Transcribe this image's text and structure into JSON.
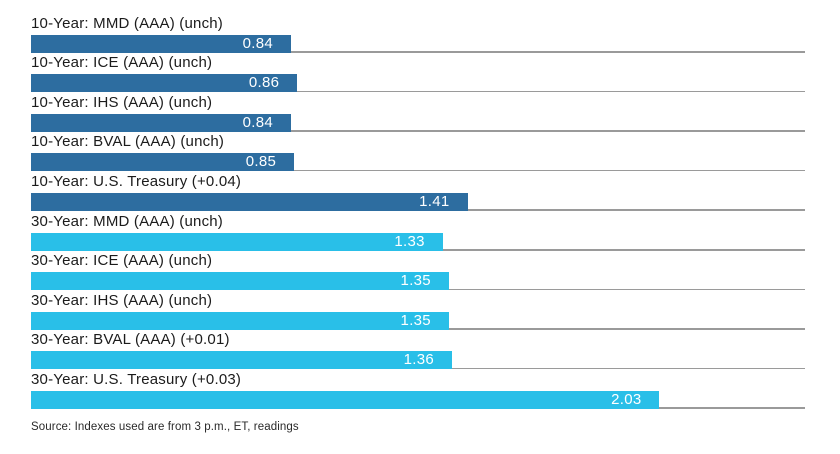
{
  "chart_data": {
    "type": "bar",
    "orientation": "horizontal",
    "title": "",
    "xlabel": "",
    "ylabel": "",
    "xlim": [
      0,
      2.5
    ],
    "grid": "row-baseline-only",
    "legend": "none",
    "colors": {
      "ten_year": "#2d6da0",
      "thirty_year": "#29bfe8",
      "baseline": "#9a9a9a",
      "value_text": "#ffffff",
      "label_text": "#1b1b1b"
    },
    "bars": [
      {
        "label": "10-Year: MMD (AAA) (unch)",
        "value": 0.84,
        "value_label": "0.84",
        "series": "10-year"
      },
      {
        "label": "10-Year: ICE (AAA) (unch)",
        "value": 0.86,
        "value_label": "0.86",
        "series": "10-year"
      },
      {
        "label": "10-Year: IHS (AAA) (unch)",
        "value": 0.84,
        "value_label": "0.84",
        "series": "10-year"
      },
      {
        "label": "10-Year: BVAL (AAA) (unch)",
        "value": 0.85,
        "value_label": "0.85",
        "series": "10-year"
      },
      {
        "label": "10-Year: U.S. Treasury (+0.04)",
        "value": 1.41,
        "value_label": "1.41",
        "series": "10-year"
      },
      {
        "label": "30-Year: MMD (AAA) (unch)",
        "value": 1.33,
        "value_label": "1.33",
        "series": "30-year"
      },
      {
        "label": "30-Year: ICE (AAA) (unch)",
        "value": 1.35,
        "value_label": "1.35",
        "series": "30-year"
      },
      {
        "label": "30-Year: IHS (AAA) (unch)",
        "value": 1.35,
        "value_label": "1.35",
        "series": "30-year"
      },
      {
        "label": "30-Year: BVAL (AAA) (+0.01)",
        "value": 1.36,
        "value_label": "1.36",
        "series": "30-year"
      },
      {
        "label": "30-Year: U.S. Treasury (+0.03)",
        "value": 2.03,
        "value_label": "2.03",
        "series": "30-year"
      }
    ],
    "source_note": "Source: Indexes used are from 3 p.m., ET, readings"
  }
}
